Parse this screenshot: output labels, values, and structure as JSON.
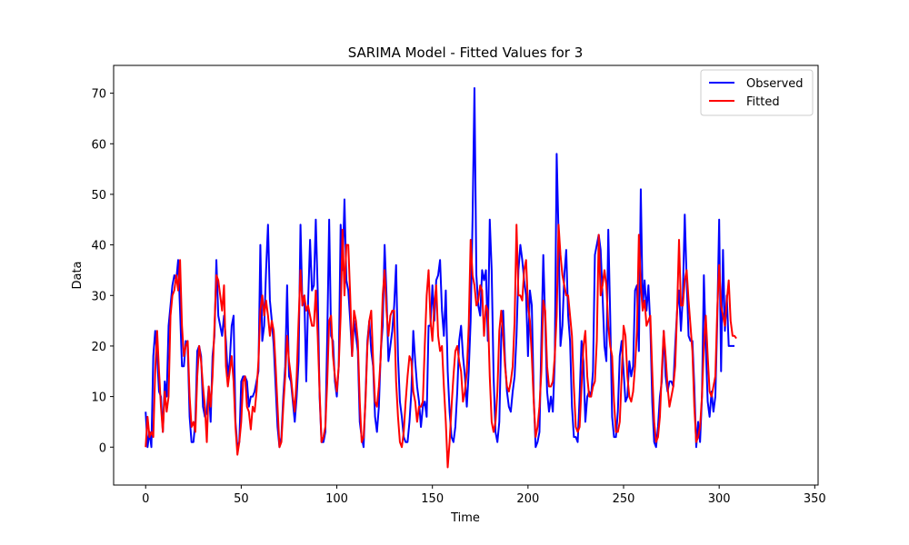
{
  "chart_data": {
    "type": "line",
    "title": "SARIMA Model - Fitted Values for 3",
    "xlabel": "Time",
    "ylabel": "Data",
    "xlim": [
      -16.75,
      351.75
    ],
    "ylim": [
      -7.5,
      75.5
    ],
    "xticks": [
      0,
      50,
      100,
      150,
      200,
      250,
      300,
      350
    ],
    "yticks": [
      0,
      10,
      20,
      30,
      40,
      50,
      60,
      70
    ],
    "grid": false,
    "legend_position": "upper-right",
    "series": [
      {
        "name": "Observed",
        "color": "#0000ff",
        "x_start": 0,
        "values": [
          7,
          0,
          3,
          0,
          18,
          23,
          18,
          11,
          10,
          3,
          13,
          10,
          24,
          28,
          32,
          34,
          33,
          37,
          27,
          16,
          16,
          21,
          20,
          6,
          1,
          1,
          5,
          19,
          20,
          18,
          8,
          6,
          7,
          12,
          5,
          18,
          22,
          37,
          26,
          24,
          22,
          26,
          21,
          14,
          17,
          24,
          26,
          5,
          0,
          1,
          13,
          14,
          14,
          13,
          8,
          10,
          10,
          11,
          13,
          15,
          40,
          21,
          24,
          35,
          44,
          29,
          25,
          20,
          12,
          4,
          0,
          2,
          10,
          16,
          32,
          14,
          13,
          9,
          5,
          10,
          17,
          44,
          28,
          30,
          13,
          29,
          41,
          31,
          32,
          45,
          31,
          10,
          1,
          1,
          3,
          22,
          45,
          22,
          21,
          13,
          10,
          16,
          44,
          35,
          49,
          33,
          31,
          25,
          18,
          25,
          22,
          19,
          5,
          2,
          0,
          10,
          21,
          25,
          19,
          16,
          6,
          3,
          8,
          19,
          24,
          40,
          30,
          17,
          20,
          23,
          28,
          36,
          18,
          9,
          6,
          2,
          1,
          1,
          5,
          11,
          23,
          17,
          12,
          9,
          4,
          8,
          9,
          6,
          24,
          24,
          32,
          25,
          33,
          34,
          37,
          27,
          22,
          31,
          15,
          7,
          2,
          1,
          4,
          11,
          21,
          24,
          18,
          14,
          8,
          15,
          25,
          45,
          71,
          34,
          28,
          26,
          35,
          33,
          35,
          21,
          45,
          35,
          14,
          3,
          1,
          5,
          22,
          27,
          17,
          11,
          8,
          7,
          11,
          14,
          22,
          35,
          40,
          37,
          33,
          30,
          18,
          31,
          28,
          10,
          0,
          1,
          3,
          21,
          38,
          25,
          11,
          7,
          10,
          7,
          17,
          58,
          42,
          20,
          24,
          34,
          39,
          26,
          21,
          8,
          2,
          2,
          1,
          10,
          21,
          17,
          5,
          10,
          11,
          10,
          15,
          38,
          40,
          42,
          39,
          30,
          20,
          17,
          43,
          26,
          6,
          2,
          2,
          7,
          18,
          21,
          15,
          9,
          10,
          17,
          14,
          16,
          31,
          32,
          19,
          51,
          28,
          33,
          27,
          32,
          24,
          9,
          1,
          0,
          4,
          10,
          13,
          23,
          14,
          11,
          13,
          13,
          12,
          20,
          27,
          31,
          23,
          30,
          46,
          33,
          22,
          21,
          21,
          12,
          0,
          5,
          1,
          10,
          34,
          20,
          9,
          6,
          11,
          7,
          10,
          25,
          45,
          15,
          39,
          23,
          30,
          20,
          20,
          20,
          20
        ]
      },
      {
        "name": "Fitted",
        "color": "#ff0000",
        "x_start": 0,
        "values": [
          0,
          6,
          2,
          3,
          2,
          15,
          23,
          15,
          8,
          3,
          11,
          7,
          10,
          26,
          30,
          31,
          34,
          31,
          37,
          24,
          18,
          20,
          21,
          10,
          4,
          5,
          3,
          14,
          20,
          17,
          12,
          8,
          1,
          12,
          8,
          14,
          24,
          34,
          33,
          30,
          27,
          32,
          16,
          12,
          15,
          18,
          13,
          4,
          -1.5,
          1,
          5,
          13,
          14,
          8,
          7,
          3.5,
          8,
          7,
          11,
          17,
          27,
          30,
          26,
          29,
          26,
          22,
          25,
          23,
          16,
          8,
          0,
          1,
          8,
          14,
          22,
          17,
          14,
          10,
          7,
          14,
          25,
          35,
          28,
          30,
          27,
          28,
          26,
          24,
          24,
          31,
          22,
          11,
          1,
          2,
          4,
          13,
          25,
          26,
          18,
          14,
          11,
          16,
          26,
          43,
          30,
          40,
          40,
          30,
          18,
          27,
          25,
          21,
          9,
          1,
          2,
          9,
          20,
          25,
          27,
          17,
          9,
          8,
          12,
          18,
          30,
          35,
          27,
          22,
          26,
          27,
          27,
          13,
          6,
          1,
          0,
          3,
          9,
          14,
          18,
          17,
          11,
          9,
          5,
          8,
          8,
          9,
          20,
          30,
          35,
          25,
          21,
          28,
          32,
          22,
          19,
          20,
          12,
          5,
          -4,
          1,
          8,
          14,
          19,
          20,
          17,
          15,
          9,
          11,
          15,
          24,
          41,
          34,
          32,
          28,
          29,
          32,
          31,
          22,
          28,
          27,
          14,
          5,
          3,
          5,
          11,
          23,
          27,
          22,
          16,
          12,
          11,
          13,
          16,
          25,
          44,
          30,
          30,
          29,
          35,
          37,
          28,
          25,
          18,
          9,
          2,
          4,
          8,
          15,
          29,
          27,
          16,
          12,
          12,
          13,
          18,
          26,
          44,
          38,
          34,
          32,
          30,
          30,
          26,
          22,
          12,
          4,
          3,
          4,
          12,
          20,
          23,
          14,
          10,
          10,
          12,
          13,
          21,
          42,
          30,
          32,
          35,
          32,
          24,
          20,
          18,
          9,
          3,
          3,
          5,
          14,
          24,
          22,
          14,
          10,
          9,
          11,
          16,
          23,
          42,
          32,
          27,
          29,
          24,
          25,
          26,
          15,
          5,
          1,
          2,
          6,
          15,
          23,
          18,
          12,
          8,
          10,
          12,
          16,
          27,
          41,
          28,
          28,
          33,
          35,
          29,
          24,
          19,
          8,
          1,
          2,
          4,
          10,
          20,
          26,
          18,
          11,
          10,
          12,
          14,
          27,
          36,
          28,
          26,
          24,
          29,
          33,
          25,
          22,
          22,
          21.5
        ]
      }
    ]
  }
}
